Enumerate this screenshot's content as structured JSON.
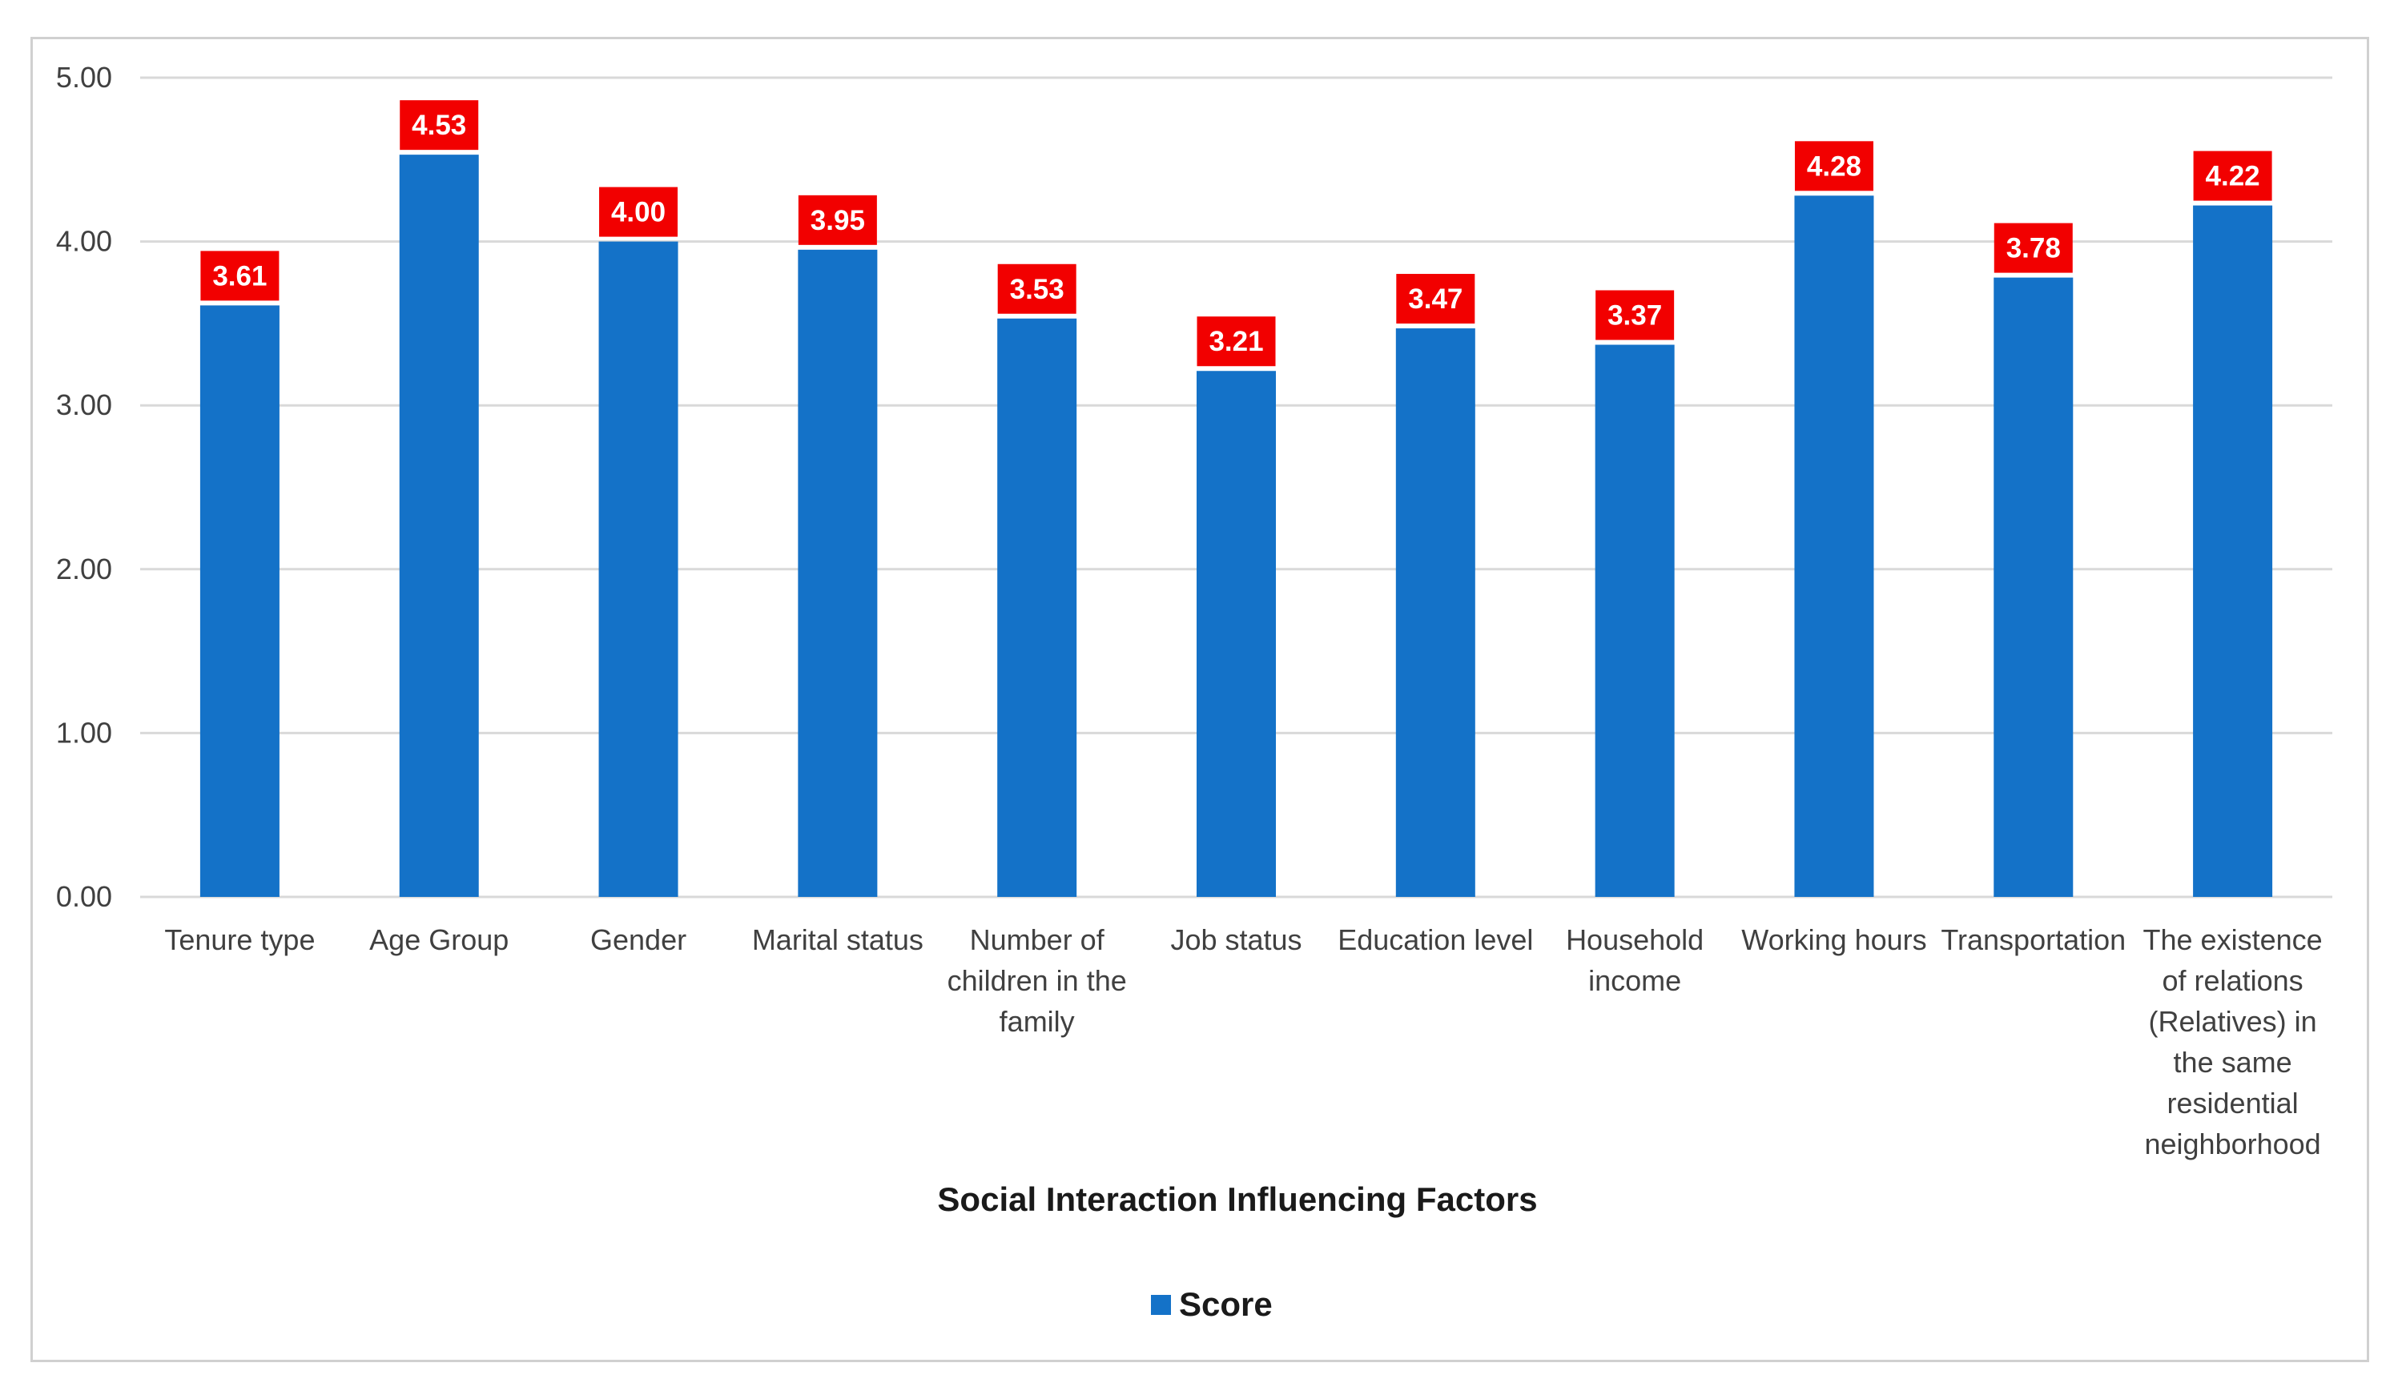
{
  "chart_data": {
    "type": "bar",
    "categories": [
      "Tenure type",
      "Age Group",
      "Gender",
      "Marital status",
      "Number of children in the family",
      "Job status",
      "Education level",
      "Household income",
      "Working hours",
      "Transportation",
      "The existence of relations (Relatives) in the same residential neighborhood"
    ],
    "category_lines": [
      [
        "Tenure type"
      ],
      [
        "Age Group"
      ],
      [
        "Gender"
      ],
      [
        "Marital status"
      ],
      [
        "Number of",
        "children in the",
        "family"
      ],
      [
        "Job status"
      ],
      [
        "Education level"
      ],
      [
        "Household",
        "income"
      ],
      [
        "Working hours"
      ],
      [
        "Transportation"
      ],
      [
        "The existence",
        "of relations",
        "(Relatives) in",
        "the same",
        "residential",
        "neighborhood"
      ]
    ],
    "series": [
      {
        "name": "Score",
        "values": [
          3.61,
          4.53,
          4.0,
          3.95,
          3.53,
          3.21,
          3.47,
          3.37,
          4.28,
          3.78,
          4.22
        ],
        "labels": [
          "3.61",
          "4.53",
          "4.00",
          "3.95",
          "3.53",
          "3.21",
          "3.47",
          "3.37",
          "4.28",
          "3.78",
          "4.22"
        ]
      }
    ],
    "xlabel": "Social Interaction Influencing Factors",
    "ylabel": "",
    "ylim": [
      0,
      5
    ],
    "yticks": [
      "0.00",
      "1.00",
      "2.00",
      "3.00",
      "4.00",
      "5.00"
    ],
    "ytick_values": [
      0,
      1,
      2,
      3,
      4,
      5
    ],
    "grid": true,
    "legend_position": "bottom-center",
    "colors": {
      "bar": "#1472C8",
      "data_label_bg": "#F20000",
      "data_label_text": "#FFFFFF",
      "grid": "#D9D9D9"
    }
  }
}
